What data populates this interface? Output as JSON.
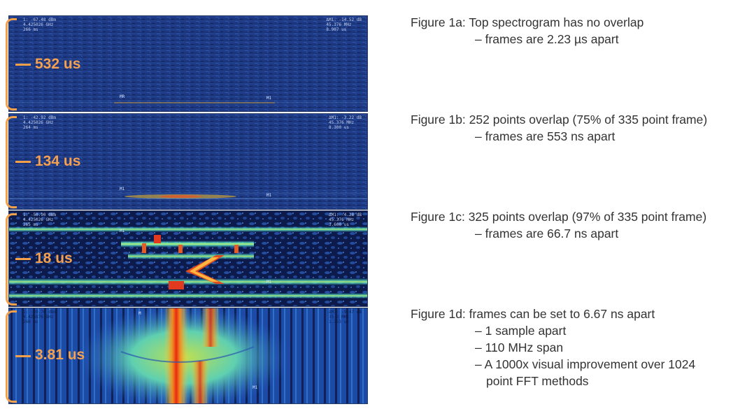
{
  "panels": [
    {
      "id": "1a",
      "duration": "532 us",
      "meta_left": [
        "1: -67.48 dBm",
        "4.425026 GHz",
        "266 ms"
      ],
      "meta_right": [
        "ΔM1: -14.52 dB",
        "45.376 MHz",
        "8.907 us"
      ],
      "markers": [
        "MR",
        "M1"
      ]
    },
    {
      "id": "1b",
      "duration": "134 us",
      "meta_left": [
        "1: -42.92 dBm",
        "4.425026 GHz",
        "264 ms"
      ],
      "meta_right": [
        "ΔM1: -3.22 dB",
        "45.376 MHz",
        "8.300 us"
      ],
      "markers": [
        "M1",
        "M1"
      ]
    },
    {
      "id": "1c",
      "duration": "18 us",
      "meta_left": [
        "1: -50.90 dBm",
        "4.425026 GHz",
        "265 ms"
      ],
      "meta_right": [
        "ΔM1: -4.28 dB",
        "45.376 MHz",
        "3.600 us"
      ],
      "markers": [
        "M1",
        "M1"
      ]
    },
    {
      "id": "1d",
      "duration": "3.81 us",
      "meta_left": [
        "1: -49.76 dBm",
        "4.426876 GHz",
        "266 ms"
      ],
      "meta_right": [
        "ΔM1: -9.47 dB",
        "35.2 MHz",
        "1.353 us"
      ],
      "markers": [
        "M",
        "M1"
      ]
    }
  ],
  "captions": [
    {
      "label": "Figure 1a:",
      "main": "Top spectrogram has no overlap",
      "lines": [
        "– frames are 2.23 µs apart"
      ]
    },
    {
      "label": "Figure 1b:",
      "main": "252 points overlap (75% of 335 point frame)",
      "lines": [
        "– frames are 553 ns apart"
      ]
    },
    {
      "label": "Figure 1c:",
      "main": "325 points overlap (97% of 335 point frame)",
      "lines": [
        "– frames are 66.7 ns apart"
      ]
    },
    {
      "label": "Figure 1d:",
      "main": "frames can be set to 6.67 ns apart",
      "lines": [
        "– 1 sample apart",
        "– 110 MHz span",
        "– A 1000x visual improvement over 1024",
        "point FFT methods"
      ]
    }
  ],
  "colors": {
    "accent": "#f5a04e",
    "spectrogram_bg": "#1e3a86",
    "caption_text": "#333333"
  }
}
